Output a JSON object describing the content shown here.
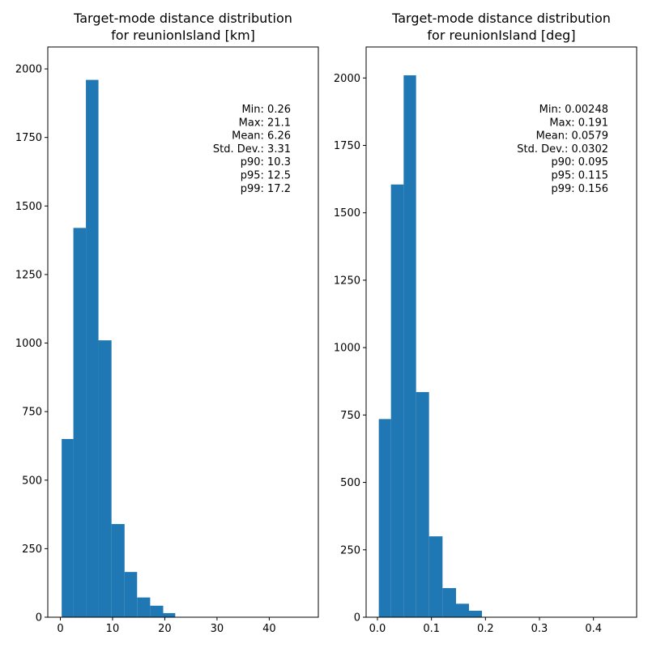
{
  "chart_data": [
    {
      "type": "bar",
      "title": [
        "Target-mode distance distribution",
        "for reunionIsland [km]"
      ],
      "xlabel": "",
      "ylabel": "",
      "bin_edges": [
        0.26,
        2.5,
        4.9,
        7.3,
        9.8,
        12.3,
        14.7,
        17.2,
        19.7,
        22.0
      ],
      "values": [
        650,
        1420,
        1960,
        1010,
        340,
        165,
        72,
        42,
        15
      ],
      "xlim": [
        -2.4,
        49.4
      ],
      "ylim": [
        0,
        2080
      ],
      "xticks": [
        {
          "value": 0,
          "label": "0"
        },
        {
          "value": 10,
          "label": "10"
        },
        {
          "value": 20,
          "label": "20"
        },
        {
          "value": 30,
          "label": "30"
        },
        {
          "value": 40,
          "label": "40"
        }
      ],
      "yticks": [
        {
          "value": 0,
          "label": "0"
        },
        {
          "value": 250,
          "label": "250"
        },
        {
          "value": 500,
          "label": "500"
        },
        {
          "value": 750,
          "label": "750"
        },
        {
          "value": 1000,
          "label": "1000"
        },
        {
          "value": 1250,
          "label": "1250"
        },
        {
          "value": 1500,
          "label": "1500"
        },
        {
          "value": 1750,
          "label": "1750"
        },
        {
          "value": 2000,
          "label": "2000"
        }
      ],
      "annotations": [
        "Min: 0.26",
        "Max: 21.1",
        "Mean: 6.26",
        "Std. Dev.: 3.31",
        "p90: 10.3",
        "p95: 12.5",
        "p99: 17.2"
      ],
      "grid": false,
      "legend": "none",
      "bar_color": "#1f77b4"
    },
    {
      "type": "bar",
      "title": [
        "Target-mode distance distribution",
        "for reunionIsland [deg]"
      ],
      "xlabel": "",
      "ylabel": "",
      "bin_edges": [
        0.0025,
        0.025,
        0.0485,
        0.0715,
        0.0955,
        0.1205,
        0.1455,
        0.1695,
        0.1935
      ],
      "values": [
        735,
        1605,
        2010,
        835,
        300,
        108,
        50,
        24
      ],
      "xlim": [
        -0.021,
        0.48
      ],
      "ylim": [
        0,
        2115
      ],
      "xticks": [
        {
          "value": 0,
          "label": "0.0"
        },
        {
          "value": 0.1,
          "label": "0.1"
        },
        {
          "value": 0.2,
          "label": "0.2"
        },
        {
          "value": 0.3,
          "label": "0.3"
        },
        {
          "value": 0.4,
          "label": "0.4"
        }
      ],
      "yticks": [
        {
          "value": 0,
          "label": "0"
        },
        {
          "value": 250,
          "label": "250"
        },
        {
          "value": 500,
          "label": "500"
        },
        {
          "value": 750,
          "label": "750"
        },
        {
          "value": 1000,
          "label": "1000"
        },
        {
          "value": 1250,
          "label": "1250"
        },
        {
          "value": 1500,
          "label": "1500"
        },
        {
          "value": 1750,
          "label": "1750"
        },
        {
          "value": 2000,
          "label": "2000"
        }
      ],
      "annotations": [
        "Min: 0.00248",
        "Max: 0.191",
        "Mean: 0.0579",
        "Std. Dev.: 0.0302",
        "p90: 0.095",
        "p95: 0.115",
        "p99: 0.156"
      ],
      "grid": false,
      "legend": "none",
      "bar_color": "#1f77b4"
    }
  ]
}
